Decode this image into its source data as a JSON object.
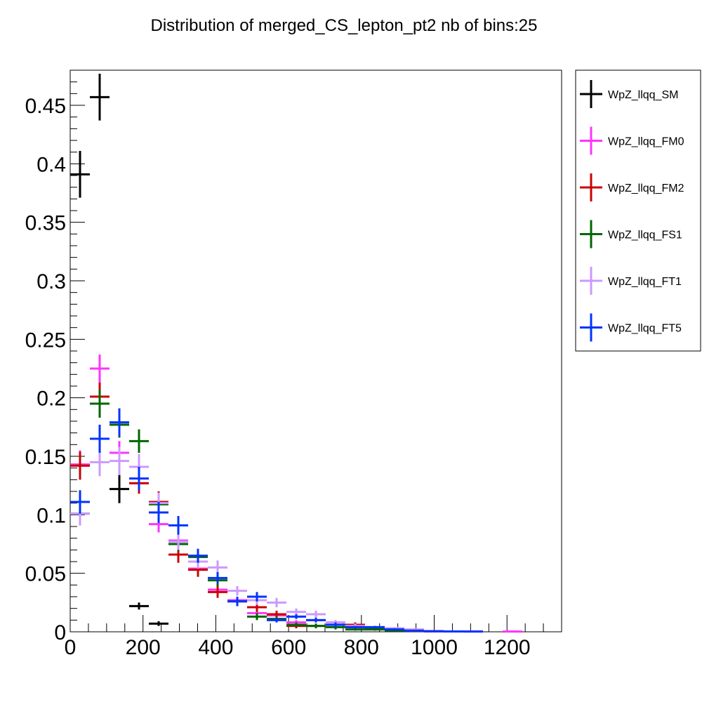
{
  "chart_data": {
    "type": "scatter",
    "title": "Distribution of merged_CS_lepton_pt2 nb of bins:25",
    "xlabel": "",
    "ylabel": "",
    "xlim": [
      0,
      1350
    ],
    "ylim": [
      0,
      0.48
    ],
    "bin_width": 54,
    "x_ticks": [
      0,
      200,
      400,
      600,
      800,
      1000,
      1200
    ],
    "y_ticks": [
      0,
      0.05,
      0.1,
      0.15,
      0.2,
      0.25,
      0.3,
      0.35,
      0.4,
      0.45
    ],
    "x_tick_labels": [
      "0",
      "200",
      "400",
      "600",
      "800",
      "1000",
      "1200"
    ],
    "y_tick_labels": [
      "0",
      "0.05",
      "0.1",
      "0.15",
      "0.2",
      "0.25",
      "0.3",
      "0.35",
      "0.4",
      "0.45"
    ],
    "legend_position": "right",
    "grid": false,
    "series": [
      {
        "name": "WpZ_llqq_SM",
        "color": "#000000",
        "x": [
          27,
          81,
          135,
          189,
          243
        ],
        "y": [
          0.391,
          0.457,
          0.122,
          0.022,
          0.007
        ],
        "err": [
          0.02,
          0.02,
          0.012,
          0.003,
          0.002
        ]
      },
      {
        "name": "WpZ_llqq_FM0",
        "color": "#ff33ff",
        "x": [
          27,
          81,
          135,
          189,
          243,
          297,
          351,
          405,
          459,
          513,
          567,
          621,
          675,
          729,
          783,
          837,
          891,
          945,
          999,
          1053,
          1107,
          1215
        ],
        "y": [
          0.143,
          0.225,
          0.153,
          0.127,
          0.092,
          0.078,
          0.054,
          0.036,
          0.027,
          0.016,
          0.014,
          0.008,
          0.01,
          0.008,
          0.004,
          0.003,
          0.002,
          0.001,
          0.0005,
          0.0003,
          0.0003,
          0.0002
        ],
        "err": [
          0.012,
          0.012,
          0.01,
          0.008,
          0.007,
          0.006,
          0.005,
          0.004,
          0.003,
          0.003,
          0.002,
          0.002,
          0.002,
          0.002,
          0.001,
          0.001,
          0.001,
          0.0005,
          0.0003,
          0.0002,
          0.0002,
          0.0002
        ]
      },
      {
        "name": "WpZ_llqq_FM2",
        "color": "#cc0000",
        "x": [
          27,
          81,
          135,
          189,
          243,
          297,
          351,
          405,
          459,
          513,
          567,
          621,
          675,
          729,
          783,
          837,
          891,
          945,
          999,
          1053
        ],
        "y": [
          0.142,
          0.201,
          0.177,
          0.127,
          0.111,
          0.066,
          0.053,
          0.034,
          0.026,
          0.021,
          0.015,
          0.005,
          0.005,
          0.006,
          0.006,
          0.003,
          0.002,
          0.001,
          0.0004,
          0.0003
        ],
        "err": [
          0.012,
          0.012,
          0.011,
          0.009,
          0.009,
          0.007,
          0.006,
          0.005,
          0.004,
          0.004,
          0.003,
          0.002,
          0.002,
          0.002,
          0.002,
          0.001,
          0.001,
          0.0005,
          0.0003,
          0.0002
        ]
      },
      {
        "name": "WpZ_llqq_FS1",
        "color": "#006600",
        "x": [
          27,
          81,
          135,
          189,
          243,
          297,
          351,
          405,
          459,
          513,
          567,
          621,
          675,
          729,
          783,
          837,
          891
        ],
        "y": [
          0.101,
          0.195,
          0.177,
          0.163,
          0.109,
          0.075,
          0.064,
          0.044,
          0.026,
          0.013,
          0.011,
          0.006,
          0.005,
          0.004,
          0.002,
          0.002,
          0.001
        ],
        "err": [
          0.01,
          0.012,
          0.011,
          0.01,
          0.008,
          0.006,
          0.006,
          0.005,
          0.004,
          0.003,
          0.002,
          0.002,
          0.002,
          0.002,
          0.001,
          0.001,
          0.0005
        ]
      },
      {
        "name": "WpZ_llqq_FT1",
        "color": "#cc99ff",
        "x": [
          27,
          81,
          135,
          189,
          243,
          297,
          351,
          405,
          459,
          513,
          567,
          621,
          675,
          729,
          783,
          837,
          891,
          945
        ],
        "y": [
          0.101,
          0.145,
          0.146,
          0.141,
          0.11,
          0.077,
          0.06,
          0.055,
          0.035,
          0.027,
          0.025,
          0.017,
          0.015,
          0.008,
          0.005,
          0.004,
          0.003,
          0.002
        ],
        "err": [
          0.01,
          0.012,
          0.012,
          0.011,
          0.009,
          0.007,
          0.006,
          0.006,
          0.004,
          0.004,
          0.004,
          0.003,
          0.003,
          0.002,
          0.002,
          0.001,
          0.001,
          0.001
        ]
      },
      {
        "name": "WpZ_llqq_FT5",
        "color": "#0033ff",
        "x": [
          27,
          81,
          135,
          189,
          243,
          297,
          351,
          405,
          459,
          513,
          567,
          621,
          675,
          729,
          783,
          837,
          891,
          945,
          999,
          1053,
          1107
        ],
        "y": [
          0.111,
          0.165,
          0.179,
          0.131,
          0.102,
          0.091,
          0.065,
          0.046,
          0.026,
          0.03,
          0.01,
          0.013,
          0.01,
          0.006,
          0.004,
          0.004,
          0.002,
          0.001,
          0.0005,
          0.0003,
          0.0002
        ],
        "err": [
          0.01,
          0.012,
          0.012,
          0.01,
          0.009,
          0.008,
          0.006,
          0.005,
          0.004,
          0.004,
          0.002,
          0.002,
          0.002,
          0.002,
          0.001,
          0.001,
          0.001,
          0.0005,
          0.0003,
          0.0002,
          0.0002
        ]
      }
    ]
  }
}
